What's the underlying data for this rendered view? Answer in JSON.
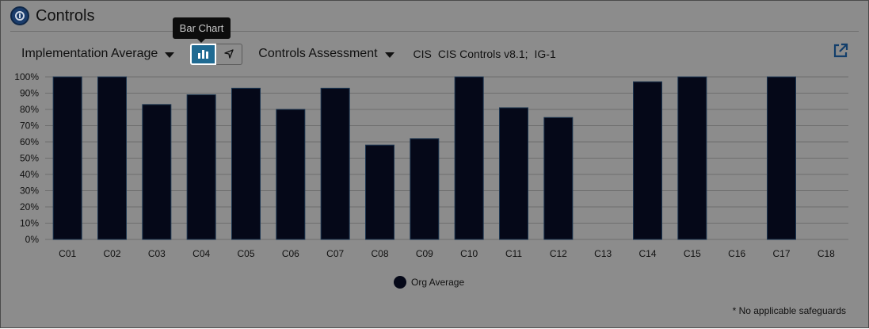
{
  "header": {
    "title": "Controls",
    "logo_icon": "cis-logo-icon"
  },
  "toolbar": {
    "metric_dropdown": "Implementation Average",
    "assessment_dropdown": "Controls Assessment",
    "framework": "CIS",
    "version": "CIS Controls v8.1;",
    "group": "IG-1",
    "tooltip": "Bar Chart",
    "bar_chart_icon": "bar-chart-icon",
    "radar_icon": "radar-chart-icon",
    "export_icon": "external-link-icon"
  },
  "chart_data": {
    "type": "bar",
    "categories": [
      "C01",
      "C02",
      "C03",
      "C04",
      "C05",
      "C06",
      "C07",
      "C08",
      "C09",
      "C10",
      "C11",
      "C12",
      "C13",
      "C14",
      "C15",
      "C16",
      "C17",
      "C18"
    ],
    "series": [
      {
        "name": "Org Average",
        "values": [
          100,
          100,
          83,
          89,
          93,
          80,
          93,
          58,
          62,
          100,
          81,
          75,
          null,
          97,
          100,
          null,
          100,
          null
        ]
      }
    ],
    "ylim": [
      0,
      100
    ],
    "yticks": [
      "0%",
      "10%",
      "20%",
      "30%",
      "40%",
      "50%",
      "60%",
      "70%",
      "80%",
      "90%",
      "100%"
    ],
    "grid": true,
    "bar_color": "#050818",
    "legend_position": "bottom"
  },
  "legend": {
    "label": "Org Average"
  },
  "footnote": "* No applicable safeguards"
}
